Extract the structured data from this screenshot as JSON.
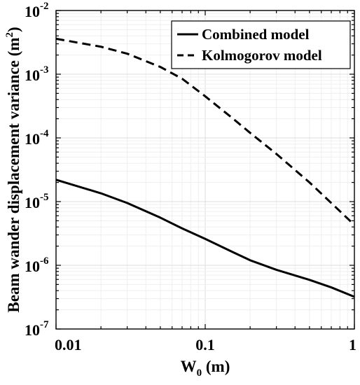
{
  "chart_data": {
    "type": "line",
    "title": "",
    "xlabel": {
      "main": "W",
      "sub": "0",
      "suffix": " (m)"
    },
    "ylabel": {
      "main": "Beam wander displacement variance (m",
      "sup": "2",
      "suffix": ")"
    },
    "xscale": "log",
    "yscale": "log",
    "xlim": [
      0.01,
      1
    ],
    "ylim": [
      1e-07,
      0.01
    ],
    "grid": true,
    "legend_position": "top-right",
    "x_ticks": [
      {
        "value": 0.01,
        "label": "0.01"
      },
      {
        "value": 0.1,
        "label": "0.1"
      },
      {
        "value": 1,
        "label": "1"
      }
    ],
    "y_ticks": [
      {
        "value": 1e-07,
        "base": "10",
        "exp": "-7"
      },
      {
        "value": 1e-06,
        "base": "10",
        "exp": "-6"
      },
      {
        "value": 1e-05,
        "base": "10",
        "exp": "-5"
      },
      {
        "value": 0.0001,
        "base": "10",
        "exp": "-4"
      },
      {
        "value": 0.001,
        "base": "10",
        "exp": "-3"
      },
      {
        "value": 0.01,
        "base": "10",
        "exp": "-2"
      }
    ],
    "series": [
      {
        "name": "Combined model",
        "line_style": "solid",
        "color": "#000000",
        "x": [
          0.01,
          0.02,
          0.03,
          0.05,
          0.07,
          0.1,
          0.15,
          0.2,
          0.3,
          0.5,
          0.7,
          1.0
        ],
        "y": [
          2.2e-05,
          1.35e-05,
          9.5e-06,
          5.6e-06,
          3.8e-06,
          2.6e-06,
          1.65e-06,
          1.2e-06,
          8.5e-07,
          5.9e-07,
          4.5e-07,
          3.2e-07
        ]
      },
      {
        "name": "Kolmogorov model",
        "line_style": "dashed",
        "color": "#000000",
        "x": [
          0.01,
          0.02,
          0.03,
          0.05,
          0.07,
          0.1,
          0.15,
          0.2,
          0.3,
          0.5,
          0.7,
          1.0
        ],
        "y": [
          0.0036,
          0.0027,
          0.0021,
          0.0013,
          0.00085,
          0.00045,
          0.00021,
          0.00012,
          5.6e-05,
          2e-05,
          9.5e-06,
          4.3e-06
        ]
      }
    ]
  }
}
